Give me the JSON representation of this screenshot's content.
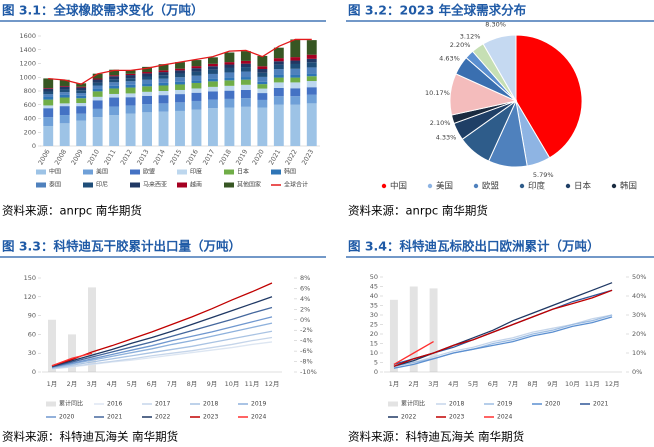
{
  "chart_data": [
    {
      "type": "bar",
      "title": "图 3.1：全球橡胶需求变化（万吨）",
      "source": "资料来源：anrpc 南华期货",
      "categories": [
        "2006",
        "2008",
        "2009",
        "2010",
        "2011",
        "2012",
        "2013",
        "2014",
        "2015",
        "2016",
        "2017",
        "2018",
        "2019",
        "2020",
        "2021",
        "2022",
        "2023"
      ],
      "ylim": [
        0,
        1600
      ],
      "yticks": [
        0,
        200,
        400,
        600,
        800,
        1000,
        1200,
        1400,
        1600
      ],
      "series": [
        {
          "name": "中国",
          "color": "#9dc3e6",
          "values": [
            290,
            330,
            370,
            420,
            450,
            470,
            490,
            500,
            510,
            530,
            550,
            560,
            570,
            560,
            600,
            600,
            620
          ]
        },
        {
          "name": "美国",
          "color": "#6fa0d8",
          "values": [
            130,
            120,
            100,
            120,
            125,
            120,
            120,
            120,
            125,
            125,
            125,
            125,
            125,
            110,
            125,
            125,
            125
          ]
        },
        {
          "name": "欧盟",
          "color": "#4472c4",
          "values": [
            130,
            130,
            110,
            125,
            130,
            120,
            120,
            120,
            120,
            120,
            120,
            120,
            120,
            100,
            120,
            115,
            110
          ]
        },
        {
          "name": "印度",
          "color": "#bdd7ee",
          "values": [
            40,
            40,
            45,
            50,
            52,
            55,
            58,
            60,
            60,
            62,
            65,
            70,
            75,
            65,
            80,
            85,
            90
          ]
        },
        {
          "name": "日本",
          "color": "#70ad47",
          "values": [
            85,
            85,
            70,
            80,
            80,
            85,
            80,
            80,
            80,
            80,
            80,
            80,
            75,
            65,
            70,
            70,
            70
          ]
        },
        {
          "name": "韩国",
          "color": "#2e75b6",
          "values": [
            38,
            38,
            35,
            40,
            40,
            40,
            40,
            40,
            40,
            40,
            40,
            40,
            38,
            35,
            38,
            38,
            38
          ]
        },
        {
          "name": "泰国",
          "color": "#4f81bd",
          "values": [
            40,
            40,
            40,
            45,
            50,
            52,
            55,
            60,
            65,
            65,
            68,
            75,
            80,
            70,
            85,
            90,
            90
          ]
        },
        {
          "name": "印尼",
          "color": "#1f4e79",
          "values": [
            40,
            40,
            40,
            42,
            43,
            45,
            48,
            50,
            55,
            60,
            62,
            65,
            65,
            60,
            65,
            70,
            75
          ]
        },
        {
          "name": "马来西亚",
          "color": "#203864",
          "values": [
            40,
            40,
            40,
            45,
            45,
            45,
            45,
            45,
            45,
            50,
            50,
            50,
            50,
            55,
            50,
            50,
            50
          ]
        },
        {
          "name": "越南",
          "color": "#a50021",
          "values": [
            10,
            10,
            12,
            15,
            15,
            18,
            20,
            25,
            25,
            30,
            35,
            35,
            40,
            40,
            45,
            50,
            60
          ]
        },
        {
          "name": "其他国家",
          "color": "#375623",
          "values": [
            140,
            90,
            50,
            70,
            80,
            50,
            75,
            90,
            95,
            88,
            95,
            140,
            142,
            150,
            152,
            257,
            212
          ]
        },
        {
          "name": "全球合计",
          "color": "#e31a1c",
          "type": "line",
          "values": [
            980,
            960,
            900,
            1050,
            1100,
            1100,
            1130,
            1180,
            1220,
            1260,
            1300,
            1380,
            1390,
            1300,
            1450,
            1550,
            1550
          ]
        }
      ]
    },
    {
      "type": "pie",
      "title": "图 3.2：2023 年全球需求分布",
      "source": "资料来源：anrpc 南华期货",
      "categories": [
        "中国",
        "美国",
        "欧盟",
        "印度",
        "日本",
        "韩国",
        null,
        null,
        null,
        null,
        null
      ],
      "values": [
        41.5,
        5.79,
        9.5,
        8.36,
        4.33,
        2.1,
        10.17,
        4.63,
        2.2,
        3.12,
        8.3
      ],
      "value_labels": [
        null,
        "5.79%",
        null,
        null,
        "4.33%",
        "2.10%",
        "10.17%",
        "4.63%",
        "2.20%",
        "3.12%",
        "8.30%"
      ],
      "colors": [
        "#ff0000",
        "#8eb4e3",
        "#4f81bd",
        "#2e5c8a",
        "#1f3f66",
        "#1a2b40",
        "#f4bcbc",
        "#3a6fb0",
        "#5b8fd0",
        "#c6dfb4",
        "#c5d9f1"
      ]
    },
    {
      "type": "line",
      "title": "图 3.3：科特迪瓦干胶累计出口量（万吨）",
      "source": "资料来源：科特迪瓦海关 南华期货",
      "categories": [
        "1月",
        "2月",
        "3月",
        "4月",
        "5月",
        "6月",
        "7月",
        "8月",
        "9月",
        "10月",
        "11月",
        "12月"
      ],
      "ylim": [
        0,
        150
      ],
      "yticks": [
        0,
        30,
        60,
        90,
        120,
        150
      ],
      "y2lim": [
        -10,
        8
      ],
      "y2ticks": [
        {
          "value": -10,
          "label": "-10%"
        },
        {
          "value": -8,
          "label": "-8%"
        },
        {
          "value": -6,
          "label": "-6%"
        },
        {
          "value": -4,
          "label": "-4%"
        },
        {
          "value": -2,
          "label": "-2%"
        },
        {
          "value": 0,
          "label": "0%"
        },
        {
          "value": 2,
          "label": "2%"
        },
        {
          "value": 4,
          "label": "4%"
        },
        {
          "value": 6,
          "label": "6%"
        },
        {
          "value": 8,
          "label": "8%"
        }
      ],
      "series": [
        {
          "name": "累计同比",
          "color": "#e3e3e3",
          "type": "bar",
          "axis": "y2",
          "values": [
            0,
            -2.8,
            6.2,
            null,
            null,
            null,
            null,
            null,
            null,
            null,
            null,
            null
          ]
        },
        {
          "name": "2016",
          "color": "#dde6f2",
          "values": [
            5,
            8,
            12,
            16,
            19,
            23,
            27,
            31,
            35,
            39,
            44,
            48
          ]
        },
        {
          "name": "2017",
          "color": "#c5d5ea",
          "values": [
            5,
            9,
            13,
            17,
            21,
            26,
            30,
            34,
            39,
            44,
            50,
            55
          ]
        },
        {
          "name": "2018",
          "color": "#a9c3e3",
          "values": [
            6,
            11,
            16,
            21,
            26,
            31,
            36,
            41,
            47,
            53,
            59,
            65
          ]
        },
        {
          "name": "2019",
          "color": "#8eb1dc",
          "values": [
            7,
            13,
            19,
            25,
            31,
            37,
            44,
            50,
            57,
            64,
            71,
            78
          ]
        },
        {
          "name": "2020",
          "color": "#6f97cf",
          "values": [
            8,
            14,
            21,
            28,
            35,
            42,
            50,
            57,
            64,
            72,
            80,
            88
          ]
        },
        {
          "name": "2021",
          "color": "#44679d",
          "values": [
            8,
            16,
            24,
            32,
            40,
            48,
            57,
            66,
            75,
            84,
            94,
            103
          ]
        },
        {
          "name": "2022",
          "color": "#1f3864",
          "values": [
            9,
            18,
            27,
            36,
            46,
            55,
            65,
            76,
            87,
            98,
            109,
            120
          ]
        },
        {
          "name": "2023",
          "color": "#c00000",
          "values": [
            10,
            20,
            32,
            42,
            53,
            64,
            76,
            88,
            101,
            115,
            128,
            142
          ]
        },
        {
          "name": "2024",
          "color": "#ff3030",
          "values": [
            10,
            22,
            30,
            null,
            null,
            null,
            null,
            null,
            null,
            null,
            null,
            null
          ]
        }
      ]
    },
    {
      "type": "line",
      "title": "图 3.4：科特迪瓦标胶出口欧洲累计（万吨）",
      "source": "资料来源：科特迪瓦海关 南华期货",
      "categories": [
        "1月",
        "2月",
        "3月",
        "4月",
        "5月",
        "6月",
        "7月",
        "8月",
        "9月",
        "10月",
        "11月",
        "12月"
      ],
      "ylim": [
        0,
        50
      ],
      "yticks": [
        0,
        5,
        10,
        15,
        20,
        25,
        30,
        35,
        40,
        45,
        50
      ],
      "y2lim": [
        0,
        50
      ],
      "y2ticks": [
        {
          "value": 0,
          "label": "0%"
        },
        {
          "value": 10,
          "label": "10%"
        },
        {
          "value": 20,
          "label": "20%"
        },
        {
          "value": 30,
          "label": "30%"
        },
        {
          "value": 40,
          "label": "40%"
        },
        {
          "value": 50,
          "label": "50%"
        }
      ],
      "series": [
        {
          "name": "累计同比",
          "color": "#e3e3e3",
          "type": "bar",
          "axis": "y2",
          "values": [
            38,
            45,
            44,
            null,
            null,
            null,
            null,
            null,
            null,
            null,
            null,
            null
          ]
        },
        {
          "name": "2018",
          "color": "#c5d5ea",
          "values": [
            3,
            5,
            8,
            11,
            13,
            16,
            18,
            21,
            23,
            25,
            28,
            30
          ]
        },
        {
          "name": "2019",
          "color": "#9dbde3",
          "values": [
            3,
            5,
            7,
            10,
            12,
            15,
            17,
            20,
            22,
            25,
            27,
            30
          ]
        },
        {
          "name": "2020",
          "color": "#5b8fd0",
          "values": [
            2,
            4,
            7,
            10,
            12,
            14,
            16,
            19,
            21,
            24,
            26,
            29
          ]
        },
        {
          "name": "2021",
          "color": "#2f5597",
          "values": [
            4,
            7,
            10,
            13,
            17,
            21,
            25,
            29,
            33,
            37,
            40,
            43
          ]
        },
        {
          "name": "2022",
          "color": "#1f3864",
          "values": [
            3,
            6,
            10,
            14,
            18,
            22,
            27,
            31,
            35,
            39,
            43,
            47
          ]
        },
        {
          "name": "2023",
          "color": "#c00000",
          "values": [
            3,
            7,
            10,
            14,
            17,
            21,
            25,
            29,
            33,
            36,
            39,
            43
          ]
        },
        {
          "name": "2024",
          "color": "#ff3030",
          "values": [
            4,
            10,
            16,
            null,
            null,
            null,
            null,
            null,
            null,
            null,
            null,
            null
          ]
        }
      ]
    }
  ]
}
